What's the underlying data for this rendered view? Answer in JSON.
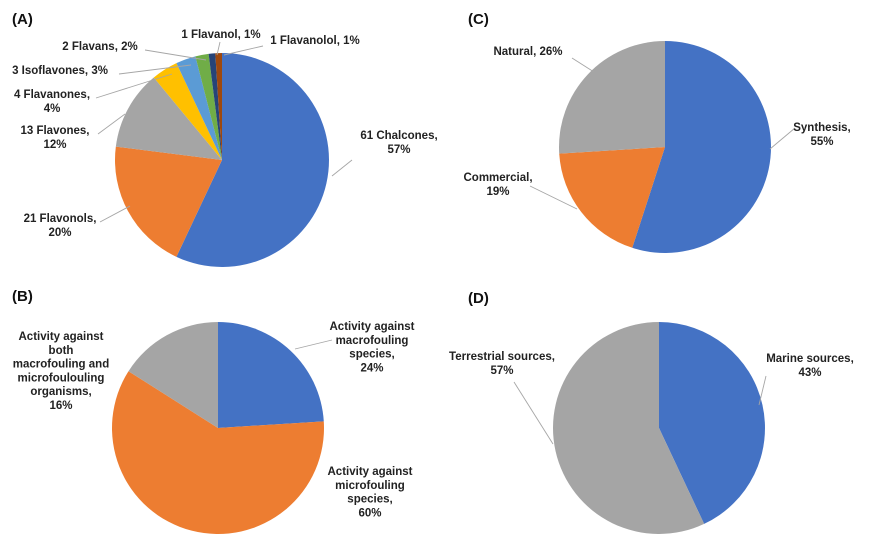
{
  "chart_data": [
    {
      "panel": "(A)",
      "type": "pie",
      "slices": [
        {
          "lines": [
            "61 Chalcones,",
            "57%"
          ],
          "count": 61,
          "percent": 57,
          "color": "#4472C4"
        },
        {
          "lines": [
            "21 Flavonols,",
            "20%"
          ],
          "count": 21,
          "percent": 20,
          "color": "#ED7D31"
        },
        {
          "lines": [
            "13 Flavones,",
            "12%"
          ],
          "count": 13,
          "percent": 12,
          "color": "#A5A5A5"
        },
        {
          "lines": [
            "4 Flavanones,",
            "4%"
          ],
          "count": 4,
          "percent": 4,
          "color": "#FFC000"
        },
        {
          "lines": [
            "3 Isoflavones, 3%"
          ],
          "count": 3,
          "percent": 3,
          "color": "#5B9BD5"
        },
        {
          "lines": [
            "2 Flavans, 2%"
          ],
          "count": 2,
          "percent": 2,
          "color": "#70AD47"
        },
        {
          "lines": [
            "1 Flavanol, 1%"
          ],
          "count": 1,
          "percent": 1,
          "color": "#264478"
        },
        {
          "lines": [
            "1 Flavanolol, 1%"
          ],
          "count": 1,
          "percent": 1,
          "color": "#9E480E"
        }
      ]
    },
    {
      "panel": "(B)",
      "type": "pie",
      "slices": [
        {
          "lines": [
            "Activity against",
            "macrofouling",
            "species,",
            "24%"
          ],
          "percent": 24,
          "color": "#4472C4"
        },
        {
          "lines": [
            "Activity against",
            "microfouling",
            "species,",
            "60%"
          ],
          "percent": 60,
          "color": "#ED7D31"
        },
        {
          "lines": [
            "Activity against",
            "both",
            "macrofouling and",
            "microfoulouling",
            "organisms,",
            "16%"
          ],
          "percent": 16,
          "color": "#A5A5A5"
        }
      ]
    },
    {
      "panel": "(C)",
      "type": "pie",
      "slices": [
        {
          "lines": [
            "Synthesis,",
            "55%"
          ],
          "percent": 55,
          "color": "#4472C4"
        },
        {
          "lines": [
            "Commercial,",
            "19%"
          ],
          "percent": 19,
          "color": "#ED7D31"
        },
        {
          "lines": [
            "Natural, 26%"
          ],
          "percent": 26,
          "color": "#A5A5A5"
        }
      ]
    },
    {
      "panel": "(D)",
      "type": "pie",
      "slices": [
        {
          "lines": [
            "Marine sources,",
            "43%"
          ],
          "percent": 43,
          "color": "#4472C4"
        },
        {
          "lines": [
            "Terrestrial sources,",
            "57%"
          ],
          "percent": 57,
          "color": "#A5A5A5"
        }
      ]
    }
  ]
}
